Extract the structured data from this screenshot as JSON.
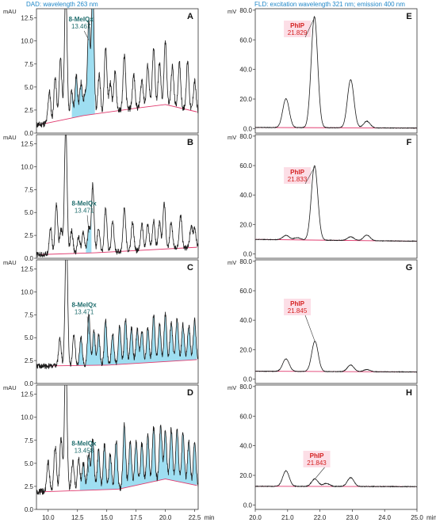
{
  "headers": {
    "left": "DAD: wavelength 263 nm",
    "right": "FLD: excitation wavelength 321 nm; emission 400 nm"
  },
  "colors": {
    "trace": "#1a1a1a",
    "baseline": "#e03a6e",
    "fill": "#4ec3e6",
    "dad_label": "#1f6d6d",
    "fld_label": "#d42020",
    "header": "#1f87c8"
  },
  "chart_data": [
    {
      "panel": "A",
      "type": "line",
      "detector": "DAD",
      "ylabel": "mAU",
      "xlabel": "min",
      "xlim": [
        9,
        22.8
      ],
      "ylim": [
        0,
        13.5
      ],
      "yticks": [
        "0.0",
        "2.5",
        "5.0",
        "7.5",
        "10.0",
        "12.5"
      ],
      "xticks": [],
      "baseline": [
        [
          9.2,
          0.9
        ],
        [
          13.0,
          1.9
        ],
        [
          17.5,
          2.7
        ],
        [
          20.0,
          3.1
        ],
        [
          22.7,
          2.3
        ]
      ],
      "base_noise": 0.6,
      "peaks": [
        [
          10.1,
          3.4
        ],
        [
          10.6,
          4.8
        ],
        [
          11.05,
          6.9
        ],
        [
          11.5,
          14.5
        ],
        [
          12.0,
          2.9
        ],
        [
          12.4,
          4.5
        ],
        [
          12.8,
          3.6
        ],
        [
          13.15,
          2.5
        ],
        [
          13.467,
          10.1
        ],
        [
          13.8,
          13.9
        ],
        [
          14.35,
          4.2
        ],
        [
          14.9,
          7.1
        ],
        [
          15.3,
          3.1
        ],
        [
          15.7,
          4.2
        ],
        [
          16.5,
          5.9
        ],
        [
          17.3,
          3.6
        ],
        [
          18.0,
          3.0
        ],
        [
          18.5,
          4.5
        ],
        [
          19.0,
          6.2
        ],
        [
          19.5,
          4.6
        ],
        [
          20.0,
          6.8
        ],
        [
          20.6,
          4.3
        ],
        [
          21.2,
          4.8
        ],
        [
          21.9,
          5.2
        ],
        [
          22.5,
          3.3
        ]
      ],
      "filled_peaks": [
        [
          12.0,
          14.0
        ]
      ],
      "annotation": {
        "name": "8-MeIQx",
        "rt": "13.467",
        "x": 13.467,
        "y": 10.1
      }
    },
    {
      "panel": "B",
      "type": "line",
      "detector": "DAD",
      "ylabel": "mAU",
      "xlabel": "min",
      "xlim": [
        9,
        22.8
      ],
      "ylim": [
        0,
        13.5
      ],
      "yticks": [
        "0.0",
        "2.5",
        "5.0",
        "7.5",
        "10.0",
        "12.5"
      ],
      "xticks": [],
      "baseline": [
        [
          9.2,
          0.4
        ],
        [
          14.0,
          0.6
        ],
        [
          22.7,
          1.2
        ]
      ],
      "base_noise": 0.5,
      "peaks": [
        [
          10.2,
          2.9
        ],
        [
          10.7,
          5.5
        ],
        [
          11.1,
          2.7
        ],
        [
          11.5,
          14.0
        ],
        [
          12.0,
          2.5
        ],
        [
          12.6,
          1.9
        ],
        [
          13.0,
          2.3
        ],
        [
          13.471,
          2.8
        ],
        [
          13.8,
          7.4
        ],
        [
          14.3,
          2.7
        ],
        [
          14.9,
          4.8
        ],
        [
          15.5,
          3.3
        ],
        [
          16.5,
          4.7
        ],
        [
          17.2,
          3.1
        ],
        [
          18.0,
          2.8
        ],
        [
          18.5,
          2.8
        ],
        [
          19.0,
          3.1
        ],
        [
          19.5,
          2.9
        ],
        [
          19.9,
          5.1
        ],
        [
          20.5,
          3.0
        ],
        [
          21.3,
          3.6
        ],
        [
          22.2,
          2.4
        ],
        [
          22.5,
          2.0
        ]
      ],
      "filled_peaks": [
        [
          13.2,
          13.7
        ]
      ],
      "annotation": {
        "name": "8-MeIQx",
        "rt": "13.471",
        "x": 13.471,
        "y": 2.8
      }
    },
    {
      "panel": "C",
      "type": "line",
      "detector": "DAD",
      "ylabel": "mAU",
      "xlabel": "min",
      "xlim": [
        9,
        22.8
      ],
      "ylim": [
        0,
        13.5
      ],
      "yticks": [
        "0.0",
        "2.5",
        "5.0",
        "7.5",
        "10.0",
        "12.5"
      ],
      "xticks": [],
      "baseline": [
        [
          9.2,
          1.9
        ],
        [
          15.0,
          2.0
        ],
        [
          22.7,
          2.6
        ]
      ],
      "base_noise": 0.5,
      "peaks": [
        [
          11.0,
          3.0
        ],
        [
          11.55,
          14.5
        ],
        [
          12.2,
          3.3
        ],
        [
          12.8,
          3.1
        ],
        [
          13.471,
          5.4
        ],
        [
          13.9,
          3.7
        ],
        [
          14.3,
          3.3
        ],
        [
          14.9,
          4.9
        ],
        [
          15.5,
          3.4
        ],
        [
          16.1,
          4.1
        ],
        [
          16.6,
          4.9
        ],
        [
          17.1,
          4.0
        ],
        [
          17.6,
          3.8
        ],
        [
          18.0,
          3.5
        ],
        [
          18.5,
          3.8
        ],
        [
          19.0,
          5.2
        ],
        [
          19.5,
          4.1
        ],
        [
          20.0,
          5.2
        ],
        [
          20.5,
          4.3
        ],
        [
          21.0,
          4.6
        ],
        [
          21.5,
          3.9
        ],
        [
          22.0,
          3.8
        ],
        [
          22.5,
          4.4
        ]
      ],
      "filled_peaks": [
        [
          12.5,
          22.7
        ]
      ],
      "annotation": {
        "name": "8-MeIQx",
        "rt": "13.471",
        "x": 13.471,
        "y": 5.4
      }
    },
    {
      "panel": "D",
      "type": "line",
      "detector": "DAD",
      "ylabel": "mAU",
      "xlabel": "min",
      "xlim": [
        9,
        22.8
      ],
      "ylim": [
        0,
        13.5
      ],
      "yticks": [
        "0.0",
        "2.5",
        "5.0",
        "7.5",
        "10.0",
        "12.5"
      ],
      "xticks": [
        "10.0",
        "12.5",
        "15.0",
        "17.5",
        "20.0",
        "22.5"
      ],
      "baseline": [
        [
          9.2,
          1.9
        ],
        [
          16.0,
          2.2
        ],
        [
          20.0,
          3.3
        ],
        [
          22.7,
          2.6
        ]
      ],
      "base_noise": 0.6,
      "peaks": [
        [
          10.0,
          3.2
        ],
        [
          10.6,
          4.9
        ],
        [
          11.1,
          5.7
        ],
        [
          11.5,
          14.5
        ],
        [
          12.1,
          3.2
        ],
        [
          12.6,
          3.4
        ],
        [
          13.0,
          3.0
        ],
        [
          13.458,
          4.0
        ],
        [
          13.8,
          5.4
        ],
        [
          14.3,
          4.4
        ],
        [
          14.8,
          4.9
        ],
        [
          15.3,
          3.8
        ],
        [
          15.8,
          5.3
        ],
        [
          16.5,
          6.8
        ],
        [
          17.0,
          4.8
        ],
        [
          17.5,
          4.8
        ],
        [
          18.0,
          4.4
        ],
        [
          18.5,
          5.1
        ],
        [
          19.0,
          5.9
        ],
        [
          19.6,
          6.0
        ],
        [
          20.0,
          5.2
        ],
        [
          20.5,
          5.6
        ],
        [
          21.0,
          5.7
        ],
        [
          21.5,
          5.4
        ],
        [
          22.0,
          4.6
        ],
        [
          22.5,
          4.7
        ]
      ],
      "filled_peaks": [
        [
          12.7,
          22.7
        ]
      ],
      "annotation": {
        "name": "8-MeIQx",
        "rt": "13.458",
        "x": 13.458,
        "y": 4.0
      }
    },
    {
      "panel": "E",
      "type": "line",
      "detector": "FLD",
      "ylabel": "mV",
      "xlabel": "",
      "xlim": [
        20.0,
        25.0
      ],
      "ylim": [
        -3,
        81
      ],
      "yticks": [
        "0.0",
        "20.0",
        "40.0",
        "60.0",
        "80.0"
      ],
      "xticks": [],
      "baseline": [
        [
          20.0,
          0.8
        ],
        [
          25.0,
          0.4
        ]
      ],
      "base_noise": 0.3,
      "peaks": [
        [
          20.95,
          19.5
        ],
        [
          21.829,
          75.0
        ],
        [
          22.95,
          32.5
        ],
        [
          23.45,
          4.5
        ]
      ],
      "filled_peaks": [],
      "annotation": {
        "name": "PhIP",
        "rt": "21.829",
        "x": 21.829,
        "y": 75.0
      }
    },
    {
      "panel": "F",
      "type": "line",
      "detector": "FLD",
      "ylabel": "mV",
      "xlabel": "",
      "xlim": [
        20.0,
        25.0
      ],
      "ylim": [
        -3,
        81
      ],
      "yticks": [
        "0.0",
        "20.0",
        "40.0",
        "60.0",
        "80.0"
      ],
      "xticks": [],
      "baseline": [
        [
          20.0,
          9.8
        ],
        [
          25.0,
          8.6
        ]
      ],
      "base_noise": 0.3,
      "peaks": [
        [
          20.95,
          3.0
        ],
        [
          21.3,
          1.5
        ],
        [
          21.833,
          50.5
        ],
        [
          22.95,
          2.5
        ],
        [
          23.45,
          3.8
        ]
      ],
      "filled_peaks": [],
      "annotation": {
        "name": "PhIP",
        "rt": "21.833",
        "x": 21.833,
        "y": 59.0
      }
    },
    {
      "panel": "G",
      "type": "line",
      "detector": "FLD",
      "ylabel": "mV",
      "xlabel": "",
      "xlim": [
        20.0,
        25.0
      ],
      "ylim": [
        -3,
        81
      ],
      "yticks": [
        "0.0",
        "20.0",
        "40.0",
        "60.0",
        "80.0"
      ],
      "xticks": [],
      "baseline": [
        [
          20.0,
          5.3
        ],
        [
          25.0,
          4.8
        ]
      ],
      "base_noise": 0.3,
      "peaks": [
        [
          20.95,
          8.5
        ],
        [
          21.845,
          20.5
        ],
        [
          22.95,
          4.5
        ],
        [
          23.45,
          1.5
        ]
      ],
      "filled_peaks": [],
      "annotation": {
        "name": "PhIP",
        "rt": "21.845",
        "x": 21.845,
        "y": 25.5
      }
    },
    {
      "panel": "H",
      "type": "line",
      "detector": "FLD",
      "ylabel": "mV",
      "xlabel": "min",
      "xlim": [
        20.0,
        25.0
      ],
      "ylim": [
        -3,
        81
      ],
      "yticks": [
        "0.0",
        "20.0",
        "40.0",
        "60.0",
        "80.0"
      ],
      "xticks": [
        "20.0",
        "21.0",
        "22.0",
        "23.0",
        "24.0",
        "25.0"
      ],
      "baseline": [
        [
          20.0,
          12.6
        ],
        [
          25.0,
          12.4
        ]
      ],
      "base_noise": 0.4,
      "peaks": [
        [
          20.95,
          10.5
        ],
        [
          21.843,
          5.0
        ],
        [
          22.2,
          2.0
        ],
        [
          22.95,
          6.0
        ]
      ],
      "filled_peaks": [],
      "annotation": {
        "name": "PhIP",
        "rt": "21.843",
        "x": 21.843,
        "y": 17.5
      }
    }
  ]
}
